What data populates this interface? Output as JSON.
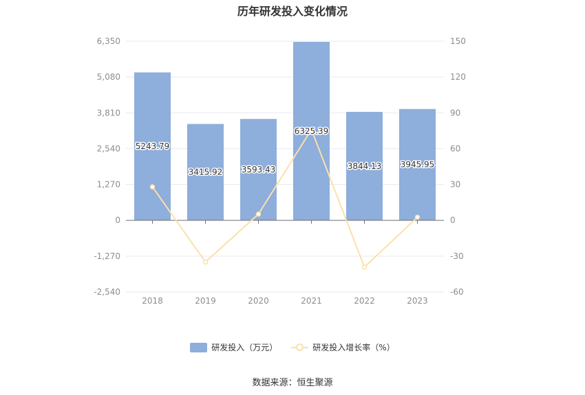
{
  "title": "历年研发投入变化情况",
  "source": "数据来源：恒生聚源",
  "colors": {
    "bar": "#8eaedb",
    "line": "#fce0a9",
    "grid": "#e6e9f0",
    "axis_text": "#8c8c8c"
  },
  "legend": {
    "bar_label": "研发投入（万元）",
    "line_label": "研发投入增长率（%）"
  },
  "chart_data": {
    "type": "bar",
    "title": "历年研发投入变化情况",
    "categories": [
      "2018",
      "2019",
      "2020",
      "2021",
      "2022",
      "2023"
    ],
    "series": [
      {
        "name": "研发投入（万元）",
        "type": "bar",
        "axis": "left",
        "values": [
          5243.79,
          3415.92,
          3593.43,
          6325.39,
          3844.13,
          3945.95
        ],
        "labels": [
          "5243.79",
          "3415.92",
          "3593.43",
          "6325.39",
          "3844.13",
          "3945.95"
        ]
      },
      {
        "name": "研发投入增长率（%）",
        "type": "line",
        "axis": "right",
        "values": [
          28,
          -34.9,
          5.2,
          76.0,
          -39.2,
          2.6
        ]
      }
    ],
    "y_left": {
      "ylim": [
        -2540,
        6350
      ],
      "ticks": [
        -2540,
        -1270,
        0,
        1270,
        2540,
        3810,
        5080,
        6350
      ],
      "tick_labels": [
        "-2,540",
        "-1,270",
        "0",
        "1,270",
        "2,540",
        "3,810",
        "5,080",
        "6,350"
      ]
    },
    "y_right": {
      "ylim": [
        -60,
        150
      ],
      "ticks": [
        -60,
        -30,
        0,
        30,
        60,
        90,
        120,
        150
      ],
      "tick_labels": [
        "-60",
        "-30",
        "0",
        "30",
        "60",
        "90",
        "120",
        "150"
      ]
    },
    "grid": true,
    "legend_position": "bottom"
  }
}
